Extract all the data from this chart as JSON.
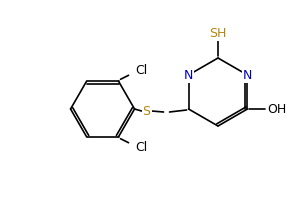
{
  "bg_color": "#ffffff",
  "bond_color": "#000000",
  "atom_colors": {
    "N": "#0000bb",
    "S": "#b8860b",
    "Cl": "#000000",
    "O": "#000000",
    "C": "#000000",
    "H": "#000000"
  },
  "figsize": [
    2.98,
    1.97
  ],
  "dpi": 100,
  "lw": 1.2
}
